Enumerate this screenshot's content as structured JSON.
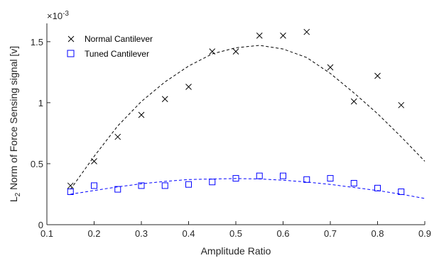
{
  "chart_data": {
    "type": "scatter",
    "xlabel": "Amplitude Ratio",
    "ylabel_main": "L",
    "ylabel_sub": "2",
    "ylabel_rest": " Norm of Force Sensing signal [v]",
    "exponent_label": "×10",
    "exponent_value": "-3",
    "xlim": [
      0.1,
      0.9
    ],
    "ylim": [
      0,
      1.65
    ],
    "xticks": [
      0.1,
      0.2,
      0.3,
      0.4,
      0.5,
      0.6,
      0.7,
      0.8,
      0.9
    ],
    "xtick_labels": [
      "0.1",
      "0.2",
      "0.3",
      "0.4",
      "0.5",
      "0.6",
      "0.7",
      "0.8",
      "0.9"
    ],
    "yticks": [
      0,
      0.5,
      1,
      1.5
    ],
    "ytick_labels": [
      "0",
      "0.5",
      "1",
      "1.5"
    ],
    "y_units_multiplier": "1e-3",
    "grid": false,
    "legend_position": "top-left",
    "series": [
      {
        "name": "Normal Cantilever",
        "marker": "x",
        "color": "#000000",
        "x": [
          0.15,
          0.2,
          0.25,
          0.3,
          0.35,
          0.4,
          0.45,
          0.5,
          0.55,
          0.6,
          0.65,
          0.7,
          0.75,
          0.8,
          0.85
        ],
        "y": [
          0.32,
          0.52,
          0.72,
          0.9,
          1.03,
          1.13,
          1.42,
          1.42,
          1.55,
          1.55,
          1.58,
          1.29,
          1.01,
          1.22,
          0.98
        ]
      },
      {
        "name": "Tuned Cantilever",
        "marker": "square",
        "color": "#0000ff",
        "x": [
          0.15,
          0.2,
          0.25,
          0.3,
          0.35,
          0.4,
          0.45,
          0.5,
          0.55,
          0.6,
          0.65,
          0.7,
          0.75,
          0.8,
          0.85
        ],
        "y": [
          0.27,
          0.32,
          0.29,
          0.32,
          0.32,
          0.33,
          0.35,
          0.38,
          0.4,
          0.4,
          0.37,
          0.38,
          0.34,
          0.3,
          0.27
        ]
      }
    ],
    "fits": [
      {
        "color": "#000000",
        "style": "dashed",
        "x": [
          0.15,
          0.2,
          0.25,
          0.3,
          0.35,
          0.4,
          0.45,
          0.5,
          0.55,
          0.6,
          0.65,
          0.7,
          0.75,
          0.8,
          0.85,
          0.9
        ],
        "y": [
          0.29,
          0.56,
          0.81,
          1.01,
          1.17,
          1.3,
          1.4,
          1.45,
          1.47,
          1.44,
          1.37,
          1.24,
          1.08,
          0.91,
          0.72,
          0.52
        ]
      },
      {
        "color": "#0000ff",
        "style": "dashed",
        "x": [
          0.15,
          0.2,
          0.25,
          0.3,
          0.35,
          0.4,
          0.45,
          0.5,
          0.55,
          0.6,
          0.65,
          0.7,
          0.75,
          0.8,
          0.85,
          0.9
        ],
        "y": [
          0.25,
          0.28,
          0.31,
          0.335,
          0.355,
          0.37,
          0.375,
          0.378,
          0.375,
          0.365,
          0.35,
          0.33,
          0.305,
          0.28,
          0.25,
          0.215
        ]
      }
    ]
  }
}
